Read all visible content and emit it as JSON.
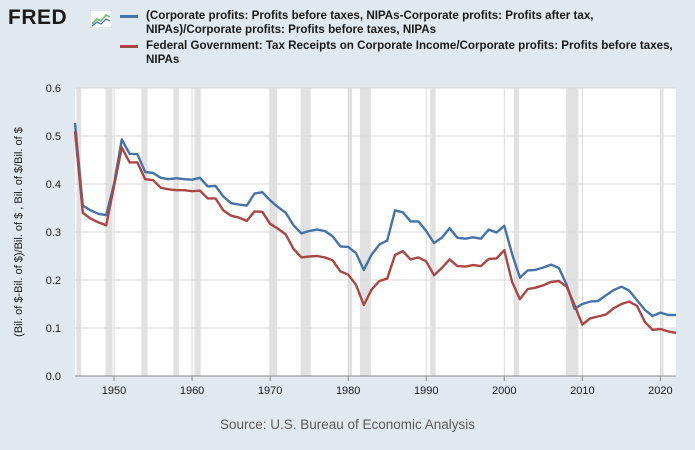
{
  "header": {
    "logo_text": "FRED",
    "logo_icon": "chart-line-icon"
  },
  "source": "Source: U.S. Bureau of Economic Analysis",
  "chart_data": {
    "type": "line",
    "title": "",
    "xlabel": "",
    "ylabel": "(Bil. of $-Bil. of $)/Bil. of $ , Bil. of $/Bil. of $",
    "xlim": [
      1945,
      2022
    ],
    "ylim": [
      0,
      0.6
    ],
    "x_ticks": [
      1950,
      1960,
      1970,
      1980,
      1990,
      2000,
      2010,
      2020
    ],
    "y_ticks": [
      0.0,
      0.1,
      0.2,
      0.3,
      0.4,
      0.5,
      0.6
    ],
    "y_tick_labels": [
      "0.0",
      "0.1",
      "0.2",
      "0.3",
      "0.4",
      "0.5",
      "0.6"
    ],
    "grid": true,
    "legend_position": "top",
    "recessions": [
      [
        1945.2,
        1945.8
      ],
      [
        1948.9,
        1949.8
      ],
      [
        1953.5,
        1954.3
      ],
      [
        1957.6,
        1958.3
      ],
      [
        1960.3,
        1961.1
      ],
      [
        1969.9,
        1970.9
      ],
      [
        1973.9,
        1975.2
      ],
      [
        1980.0,
        1980.5
      ],
      [
        1981.5,
        1982.9
      ],
      [
        1990.5,
        1991.2
      ],
      [
        2001.2,
        2001.9
      ],
      [
        2007.9,
        2009.5
      ],
      [
        2020.1,
        2020.4
      ]
    ],
    "x": [
      1945,
      1946,
      1947,
      1948,
      1949,
      1950,
      1951,
      1952,
      1953,
      1954,
      1955,
      1956,
      1957,
      1958,
      1959,
      1960,
      1961,
      1962,
      1963,
      1964,
      1965,
      1966,
      1967,
      1968,
      1969,
      1970,
      1971,
      1972,
      1973,
      1974,
      1975,
      1976,
      1977,
      1978,
      1979,
      1980,
      1981,
      1982,
      1983,
      1984,
      1985,
      1986,
      1987,
      1988,
      1989,
      1990,
      1991,
      1992,
      1993,
      1994,
      1995,
      1996,
      1997,
      1998,
      1999,
      2000,
      2001,
      2002,
      2003,
      2004,
      2005,
      2006,
      2007,
      2008,
      2009,
      2010,
      2011,
      2012,
      2013,
      2014,
      2015,
      2016,
      2017,
      2018,
      2019,
      2020,
      2021,
      2022
    ],
    "series": [
      {
        "name": "(Corporate profits: Profits before taxes, NIPAs-Corporate profits: Profits after tax, NIPAs)/Corporate profits: Profits before taxes, NIPAs",
        "color": "#4572a7",
        "values": [
          0.527,
          0.355,
          0.345,
          0.338,
          0.335,
          0.4,
          0.493,
          0.463,
          0.462,
          0.425,
          0.423,
          0.413,
          0.41,
          0.412,
          0.41,
          0.409,
          0.413,
          0.395,
          0.396,
          0.374,
          0.36,
          0.357,
          0.355,
          0.38,
          0.383,
          0.366,
          0.352,
          0.34,
          0.314,
          0.297,
          0.302,
          0.305,
          0.302,
          0.291,
          0.27,
          0.269,
          0.256,
          0.221,
          0.253,
          0.274,
          0.282,
          0.345,
          0.341,
          0.322,
          0.322,
          0.302,
          0.277,
          0.288,
          0.308,
          0.288,
          0.286,
          0.289,
          0.286,
          0.305,
          0.299,
          0.313,
          0.254,
          0.205,
          0.22,
          0.221,
          0.226,
          0.232,
          0.225,
          0.19,
          0.14,
          0.15,
          0.155,
          0.156,
          0.168,
          0.179,
          0.186,
          0.178,
          0.158,
          0.138,
          0.125,
          0.132,
          0.127,
          0.127
        ]
      },
      {
        "name": "Federal Government: Tax Receipts on Corporate Income/Corporate profits: Profits before taxes, NIPAs",
        "color": "#aa4643",
        "values": [
          0.51,
          0.34,
          0.328,
          0.32,
          0.314,
          0.395,
          0.476,
          0.445,
          0.445,
          0.41,
          0.408,
          0.392,
          0.389,
          0.387,
          0.387,
          0.385,
          0.386,
          0.37,
          0.37,
          0.345,
          0.334,
          0.33,
          0.323,
          0.343,
          0.342,
          0.317,
          0.307,
          0.295,
          0.265,
          0.247,
          0.249,
          0.25,
          0.247,
          0.241,
          0.218,
          0.211,
          0.19,
          0.148,
          0.18,
          0.198,
          0.203,
          0.252,
          0.26,
          0.243,
          0.247,
          0.239,
          0.21,
          0.225,
          0.243,
          0.229,
          0.228,
          0.231,
          0.229,
          0.244,
          0.245,
          0.262,
          0.196,
          0.16,
          0.181,
          0.184,
          0.189,
          0.196,
          0.198,
          0.186,
          0.148,
          0.107,
          0.12,
          0.124,
          0.128,
          0.141,
          0.15,
          0.155,
          0.146,
          0.113,
          0.096,
          0.098,
          0.093,
          0.09
        ]
      }
    ]
  }
}
